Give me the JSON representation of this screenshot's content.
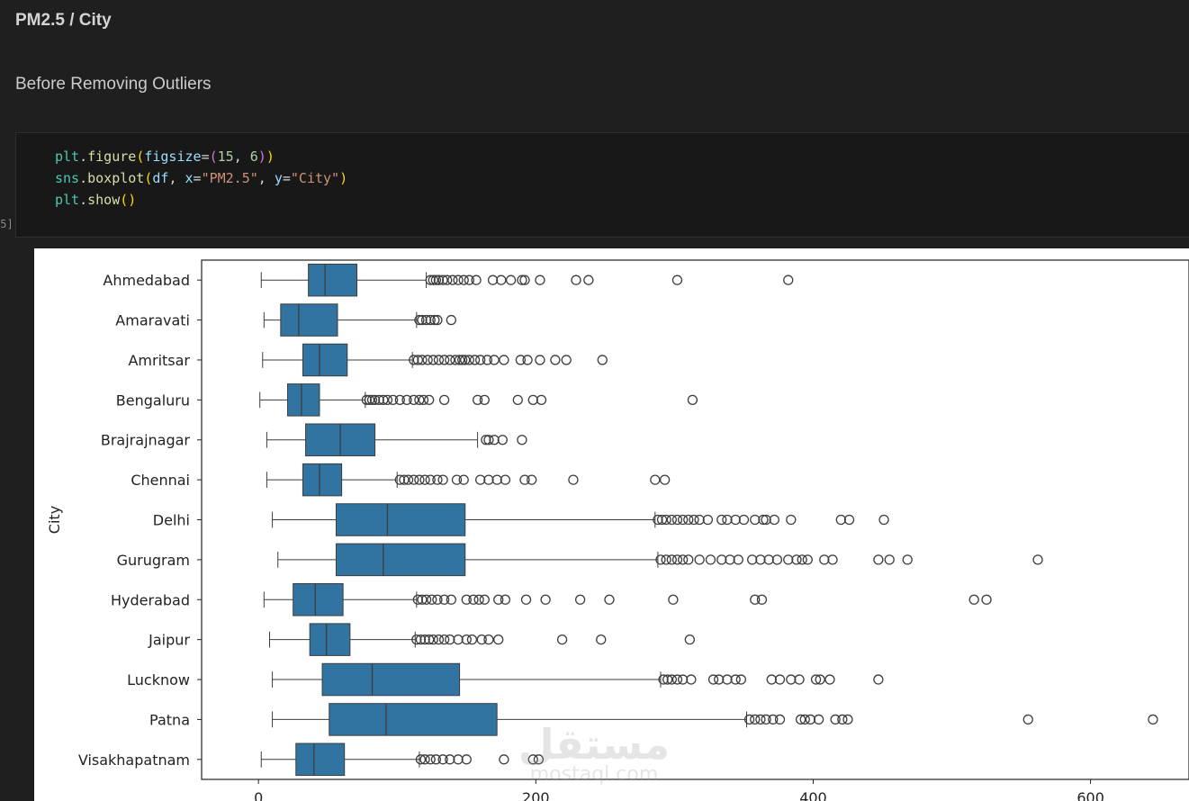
{
  "header": {
    "title": "PM2.5 / City",
    "subtitle": "Before Removing Outliers"
  },
  "cell": {
    "execution_count": "[5]",
    "code_lines": [
      [
        {
          "t": "plt",
          "c": "obj"
        },
        {
          "t": ".",
          "c": "op"
        },
        {
          "t": "figure",
          "c": "fn"
        },
        {
          "t": "(",
          "c": "p1"
        },
        {
          "t": "figsize",
          "c": "var"
        },
        {
          "t": "=",
          "c": "op"
        },
        {
          "t": "(",
          "c": "p2"
        },
        {
          "t": "15",
          "c": "num"
        },
        {
          "t": ", ",
          "c": "op"
        },
        {
          "t": "6",
          "c": "num"
        },
        {
          "t": ")",
          "c": "p2"
        },
        {
          "t": ")",
          "c": "p1"
        }
      ],
      [
        {
          "t": "sns",
          "c": "obj"
        },
        {
          "t": ".",
          "c": "op"
        },
        {
          "t": "boxplot",
          "c": "fn"
        },
        {
          "t": "(",
          "c": "p1"
        },
        {
          "t": "df",
          "c": "var"
        },
        {
          "t": ", ",
          "c": "op"
        },
        {
          "t": "x",
          "c": "var"
        },
        {
          "t": "=",
          "c": "op"
        },
        {
          "t": "\"PM2.5\"",
          "c": "str"
        },
        {
          "t": ", ",
          "c": "op"
        },
        {
          "t": "y",
          "c": "var"
        },
        {
          "t": "=",
          "c": "op"
        },
        {
          "t": "\"City\"",
          "c": "str"
        },
        {
          "t": ")",
          "c": "p1"
        }
      ],
      [
        {
          "t": "plt",
          "c": "obj"
        },
        {
          "t": ".",
          "c": "op"
        },
        {
          "t": "show",
          "c": "fn"
        },
        {
          "t": "()",
          "c": "p1"
        }
      ]
    ]
  },
  "watermark": {
    "arabic": "مستقل",
    "latin": "mostaql.com"
  },
  "chart_data": {
    "type": "boxplot",
    "orientation": "horizontal",
    "ylabel": "City",
    "xlabel": "",
    "xlim": [
      -41,
      671
    ],
    "xticks": [
      0,
      200,
      400,
      600
    ],
    "grid": false,
    "box_color": "#3274a1",
    "edge_color": "#3d3d3d",
    "categories": [
      "Ahmedabad",
      "Amaravati",
      "Amritsar",
      "Bengaluru",
      "Brajrajnagar",
      "Chennai",
      "Delhi",
      "Gurugram",
      "Hyderabad",
      "Jaipur",
      "Lucknow",
      "Patna",
      "Visakhapatnam"
    ],
    "boxes": [
      {
        "whislo": 2,
        "q1": 36,
        "med": 48,
        "q3": 71,
        "whishi": 121,
        "fliers": [
          124,
          126,
          128,
          130,
          133,
          136,
          140,
          144,
          148,
          152,
          157,
          169,
          175,
          182,
          190,
          192,
          203,
          229,
          238,
          302,
          382
        ]
      },
      {
        "whislo": 4,
        "q1": 16,
        "med": 29,
        "q3": 57,
        "whishi": 114,
        "fliers": [
          116,
          118,
          121,
          124,
          127,
          129,
          139
        ]
      },
      {
        "whislo": 3,
        "q1": 32,
        "med": 44,
        "q3": 64,
        "whishi": 111,
        "fliers": [
          112,
          115,
          118,
          122,
          126,
          130,
          134,
          138,
          142,
          145,
          147,
          149,
          152,
          156,
          160,
          165,
          170,
          177,
          189,
          194,
          203,
          214,
          222,
          248
        ]
      },
      {
        "whislo": 1,
        "q1": 21,
        "med": 31,
        "q3": 44,
        "whishi": 77,
        "fliers": [
          78,
          80,
          82,
          84,
          87,
          90,
          93,
          97,
          102,
          107,
          112,
          116,
          119,
          123,
          134,
          158,
          163,
          187,
          198,
          204,
          313
        ]
      },
      {
        "whislo": 6,
        "q1": 34,
        "med": 59,
        "q3": 84,
        "whishi": 158,
        "fliers": [
          164,
          166,
          170,
          176,
          190
        ]
      },
      {
        "whislo": 6,
        "q1": 32,
        "med": 44,
        "q3": 60,
        "whishi": 100,
        "fliers": [
          102,
          105,
          108,
          112,
          116,
          120,
          124,
          129,
          133,
          143,
          148,
          160,
          166,
          172,
          178,
          192,
          197,
          227,
          286,
          293
        ]
      },
      {
        "whislo": 10,
        "q1": 56,
        "med": 93,
        "q3": 149,
        "whishi": 286,
        "fliers": [
          288,
          291,
          294,
          298,
          302,
          306,
          310,
          314,
          318,
          324,
          334,
          338,
          344,
          350,
          358,
          364,
          366,
          372,
          384,
          420,
          426,
          451
        ]
      },
      {
        "whislo": 14,
        "q1": 56,
        "med": 90,
        "q3": 149,
        "whishi": 288,
        "fliers": [
          290,
          294,
          298,
          302,
          306,
          310,
          318,
          326,
          334,
          340,
          346,
          356,
          362,
          368,
          374,
          382,
          388,
          392,
          396,
          408,
          414,
          447,
          455,
          468,
          562
        ]
      },
      {
        "whislo": 4,
        "q1": 25,
        "med": 41,
        "q3": 61,
        "whishi": 114,
        "fliers": [
          115,
          118,
          121,
          125,
          129,
          134,
          139,
          150,
          155,
          159,
          163,
          173,
          178,
          193,
          207,
          232,
          253,
          299,
          358,
          363,
          516,
          525
        ]
      },
      {
        "whislo": 8,
        "q1": 37,
        "med": 49,
        "q3": 66,
        "whishi": 113,
        "fliers": [
          114,
          117,
          120,
          123,
          126,
          130,
          134,
          138,
          144,
          150,
          154,
          161,
          166,
          173,
          219,
          247,
          311
        ]
      },
      {
        "whislo": 10,
        "q1": 46,
        "med": 82,
        "q3": 145,
        "whishi": 290,
        "fliers": [
          292,
          295,
          298,
          302,
          306,
          312,
          328,
          332,
          338,
          344,
          348,
          370,
          376,
          384,
          390,
          402,
          405,
          412,
          447
        ]
      },
      {
        "whislo": 10,
        "q1": 51,
        "med": 92,
        "q3": 172,
        "whishi": 352,
        "fliers": [
          354,
          358,
          362,
          366,
          371,
          376,
          391,
          394,
          398,
          404,
          416,
          421,
          425,
          555,
          645
        ]
      },
      {
        "whislo": 2,
        "q1": 27,
        "med": 40,
        "q3": 62,
        "whishi": 116,
        "fliers": [
          117,
          120,
          124,
          128,
          133,
          138,
          144,
          150,
          177,
          198,
          202
        ]
      }
    ]
  }
}
